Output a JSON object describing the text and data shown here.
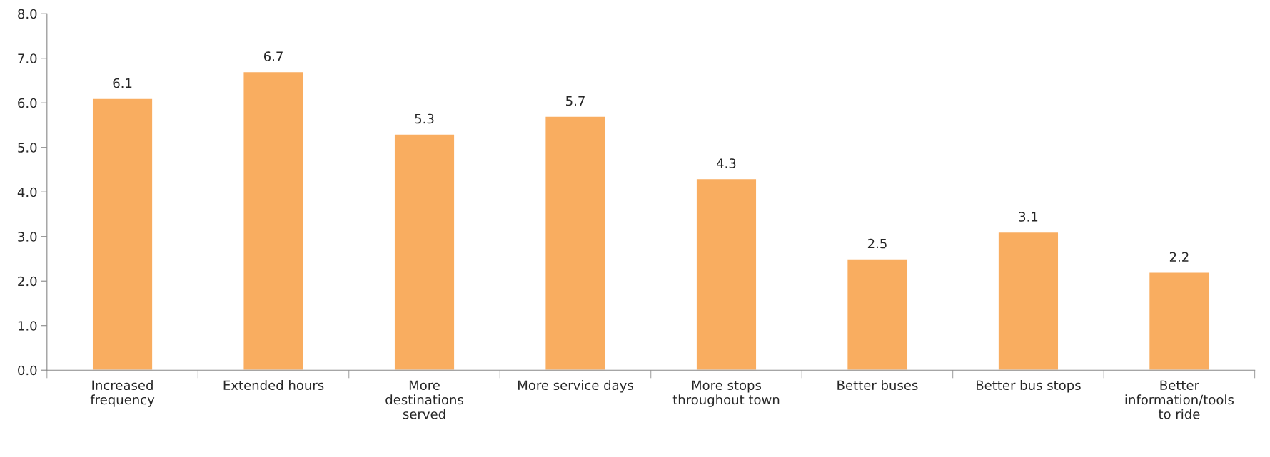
{
  "chart_data": {
    "type": "bar",
    "categories": [
      "Increased\nfrequency",
      "Extended hours",
      "More\ndestinations\nserved",
      "More service days",
      "More stops\nthroughout town",
      "Better buses",
      "Better bus stops",
      "Better\ninformation/tools\nto ride"
    ],
    "values": [
      6.1,
      6.7,
      5.3,
      5.7,
      4.3,
      2.5,
      3.1,
      2.2
    ],
    "color": "#f9ad60",
    "ylim": [
      0,
      8
    ],
    "yticks": [
      {
        "value": 0,
        "label": "0.0"
      },
      {
        "value": 1,
        "label": "1.0"
      },
      {
        "value": 2,
        "label": "2.0"
      },
      {
        "value": 3,
        "label": "3.0"
      },
      {
        "value": 4,
        "label": "4.0"
      },
      {
        "value": 5,
        "label": "5.0"
      },
      {
        "value": 6,
        "label": "6.0"
      },
      {
        "value": 7,
        "label": "7.0"
      },
      {
        "value": 8,
        "label": "8.0"
      }
    ],
    "data_labels": true,
    "grid": false,
    "legend": false
  }
}
